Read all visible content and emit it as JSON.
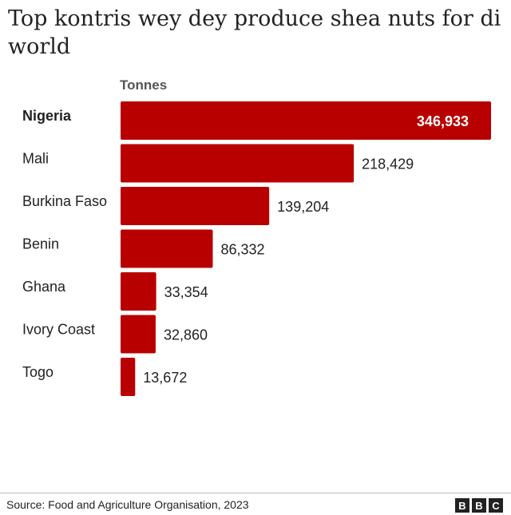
{
  "title": "Top kontris wey dey produce shea nuts for di world",
  "source": "Source: Food and Agriculture Organisation, 2023",
  "logo": [
    "B",
    "B",
    "C"
  ],
  "colors": {
    "bar": "#b80000",
    "text": "#222222",
    "unit": "#555555"
  },
  "chart_data": {
    "type": "bar",
    "orientation": "horizontal",
    "unit_label": "Tonnes",
    "categories": [
      "Nigeria",
      "Mali",
      "Burkina Faso",
      "Benin",
      "Ghana",
      "Ivory Coast",
      "Togo"
    ],
    "values": [
      346933,
      218429,
      139204,
      86332,
      33354,
      32860,
      13672
    ],
    "value_labels": [
      "346,933",
      "218,429",
      "139,204",
      "86,332",
      "33,354",
      "32,860",
      "13,672"
    ],
    "highlight": "Nigeria",
    "xlim": [
      0,
      346933
    ],
    "grid": false,
    "legend": "none"
  }
}
